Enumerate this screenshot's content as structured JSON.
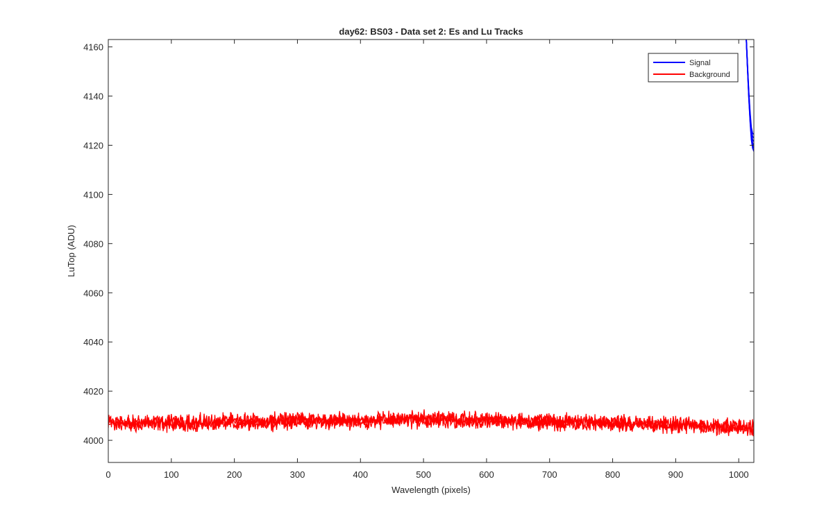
{
  "chart_data": {
    "type": "line",
    "title": "day62: BS03 - Data set 2: Es and Lu Tracks",
    "xlabel": "Wavelength (pixels)",
    "ylabel": "LuTop (ADU)",
    "xlim": [
      0,
      1024
    ],
    "ylim": [
      3991,
      4163
    ],
    "xticks": [
      0,
      100,
      200,
      300,
      400,
      500,
      600,
      700,
      800,
      900,
      1000
    ],
    "yticks": [
      4000,
      4020,
      4040,
      4060,
      4080,
      4100,
      4120,
      4140,
      4160
    ],
    "grid": false,
    "legend_position": "top-right",
    "series": [
      {
        "name": "Signal",
        "color": "#0000ff",
        "x": [
          1010,
          1012,
          1014,
          1016,
          1018,
          1020,
          1022,
          1024
        ],
        "y": [
          4175,
          4163,
          4151,
          4140,
          4131,
          4124,
          4121,
          4120
        ]
      },
      {
        "name": "Background",
        "color": "#ff0000",
        "x": [
          0,
          100,
          200,
          300,
          400,
          500,
          600,
          700,
          800,
          900,
          1000,
          1024
        ],
        "y": [
          4007,
          4007,
          4007.5,
          4008,
          4008,
          4008.5,
          4008,
          4007.5,
          4007,
          4006,
          4005.5,
          4005
        ],
        "noise_amplitude": 3.5
      }
    ]
  }
}
